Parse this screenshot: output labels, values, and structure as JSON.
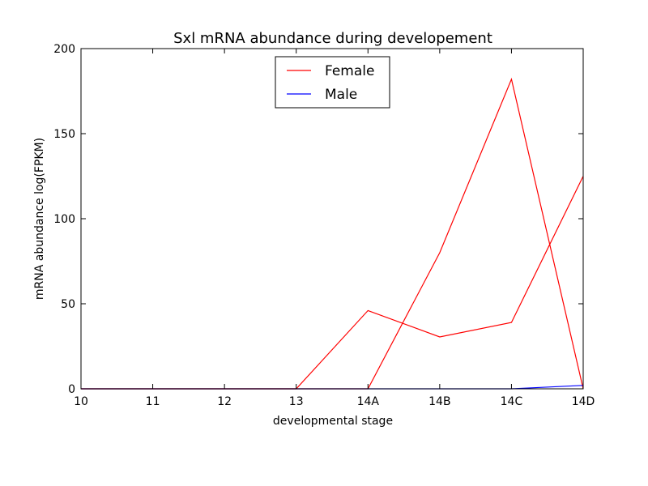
{
  "chart_data": {
    "type": "line",
    "title": "Sxl mRNA abundance during developement",
    "xlabel": "developmental stage",
    "ylabel": "mRNA abundance log(FPKM)",
    "categories": [
      "10",
      "11",
      "12",
      "13",
      "14A",
      "14B",
      "14C",
      "14D"
    ],
    "ylim": [
      0,
      200
    ],
    "yticks": [
      0,
      50,
      100,
      150,
      200
    ],
    "grid": false,
    "legend_position": "top-center",
    "series": [
      {
        "name": "Female",
        "color": "#ff0000",
        "values": [
          0,
          0,
          0,
          0,
          46,
          30.5,
          39,
          125
        ]
      },
      {
        "name": "",
        "legend_hidden": true,
        "color": "#ff0000",
        "values": [
          0,
          0,
          0,
          0,
          0,
          80,
          182,
          0
        ]
      },
      {
        "name": "Male",
        "color": "#0000ff",
        "values": [
          0,
          0,
          0,
          0,
          0,
          0,
          0,
          2
        ]
      }
    ]
  }
}
